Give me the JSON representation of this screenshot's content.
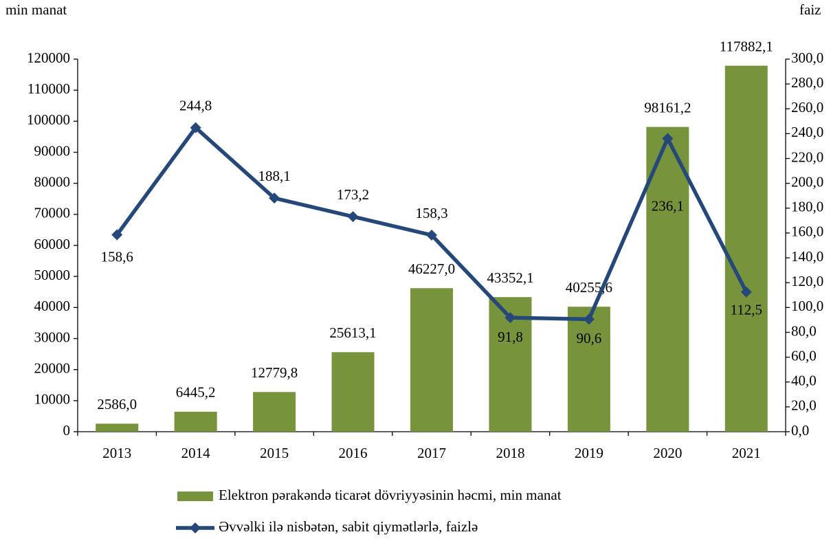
{
  "chart_data": {
    "type": "bar-line",
    "y_label": "min manat",
    "y2_label": "faiz",
    "categories": [
      "2013",
      "2014",
      "2015",
      "2016",
      "2017",
      "2018",
      "2019",
      "2020",
      "2021"
    ],
    "series": [
      {
        "name": "Elektron pərakəndə ticarət dövriyyəsinin həcmi, min manat",
        "type": "bar",
        "color": "#77933c",
        "values": [
          2586.0,
          6445.2,
          12779.8,
          25613.1,
          46227.0,
          43352.1,
          40255.6,
          98161.2,
          117882.1
        ],
        "value_labels": [
          "2586,0",
          "6445,2",
          "12779,8",
          "25613,1",
          "46227,0",
          "43352,1",
          "40255,6",
          "98161,2",
          "117882,1"
        ]
      },
      {
        "name": "Əvvəlki ilə nisbətən, sabit qiymətlərlə, faizlə",
        "type": "line",
        "color": "#24487a",
        "axis": "y2",
        "values": [
          158.6,
          244.8,
          188.1,
          173.2,
          158.3,
          91.8,
          90.6,
          236.1,
          112.5
        ],
        "value_labels": [
          "158,6",
          "244,8",
          "188,1",
          "173,2",
          "158,3",
          "91,8",
          "90,6",
          "236,1",
          "112,5"
        ]
      }
    ],
    "ylim": [
      0,
      120000
    ],
    "yticks": [
      0,
      10000,
      20000,
      30000,
      40000,
      50000,
      60000,
      70000,
      80000,
      90000,
      100000,
      110000,
      120000
    ],
    "y2lim": [
      0,
      300
    ],
    "y2ticks": [
      {
        "value": 0,
        "label": "0,0"
      },
      {
        "value": 20,
        "label": "20,0"
      },
      {
        "value": 40,
        "label": "40,0"
      },
      {
        "value": 60,
        "label": "60,0"
      },
      {
        "value": 80,
        "label": "80,0"
      },
      {
        "value": 100,
        "label": "100,0"
      },
      {
        "value": 120,
        "label": "120,0"
      },
      {
        "value": 140,
        "label": "140,0"
      },
      {
        "value": 160,
        "label": "160,0"
      },
      {
        "value": 180,
        "label": "180,0"
      },
      {
        "value": 200,
        "label": "200,0"
      },
      {
        "value": 220,
        "label": "220,0"
      },
      {
        "value": 240,
        "label": "240,0"
      },
      {
        "value": 260,
        "label": "260,0"
      },
      {
        "value": 280,
        "label": "280,0"
      },
      {
        "value": 300,
        "label": "300,0"
      }
    ],
    "legend": "bottom"
  }
}
